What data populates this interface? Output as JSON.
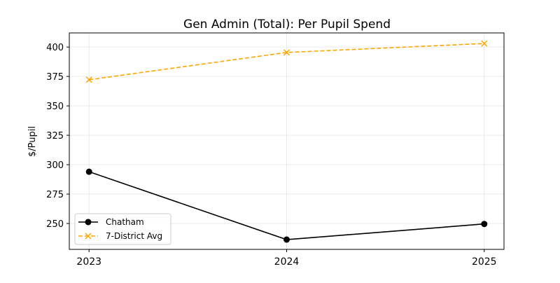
{
  "chart_data": {
    "type": "line",
    "title": "Gen Admin (Total): Per Pupil Spend",
    "xlabel": "",
    "ylabel": "$/Pupil",
    "x": [
      2023,
      2024,
      2025
    ],
    "xticks": [
      "2023",
      "2024",
      "2025"
    ],
    "yticks": [
      250,
      275,
      300,
      325,
      350,
      375,
      400
    ],
    "xlim": [
      2022.9,
      2025.1
    ],
    "ylim": [
      228,
      412
    ],
    "grid": true,
    "legend_position": "lower-left",
    "series": [
      {
        "name": "Chatham",
        "values": [
          294,
          236.3,
          249.6
        ],
        "color": "#000000",
        "linestyle": "solid",
        "marker": "circle"
      },
      {
        "name": "7-District Avg",
        "values": [
          372.2,
          395.4,
          403
        ],
        "color": "#FFA500",
        "linestyle": "dashed",
        "marker": "x"
      }
    ]
  }
}
